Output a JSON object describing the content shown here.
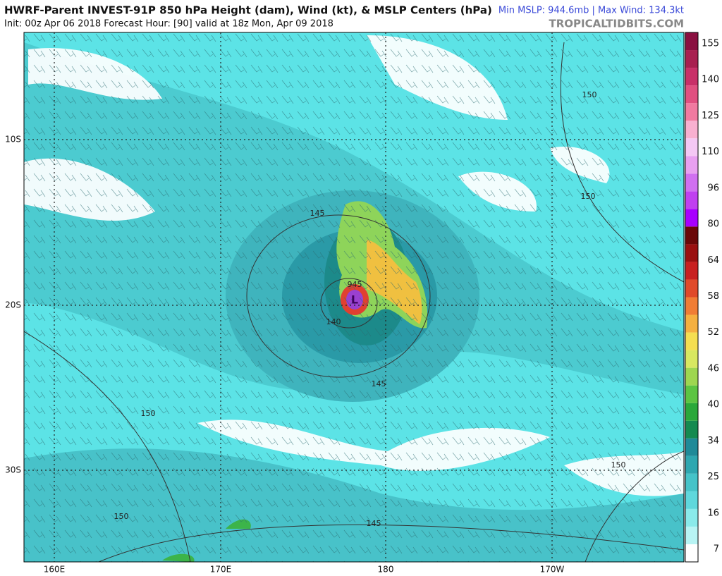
{
  "header": {
    "title": "HWRF-Parent INVEST-91P 850 hPa Height (dam), Wind (kt), & MSLP Centers (hPa)",
    "stats": "Min MSLP: 944.6mb | Max Wind: 134.3kt",
    "init": "Init: 00z Apr 06 2018   Forecast Hour: [90]   valid at 18z Mon, Apr 09 2018",
    "site": "TROPICALTIDBITS.COM"
  },
  "map": {
    "lon_labels": [
      "160E",
      "170E",
      "180",
      "170W"
    ],
    "lat_labels": [
      "10S",
      "20S",
      "30S"
    ],
    "contour_labels": [
      "150",
      "150",
      "145",
      "140",
      "145",
      "150",
      "150",
      "150",
      "145"
    ],
    "center_pressure": "945",
    "center_symbol": "L"
  },
  "colorbar": {
    "labels": [
      7,
      16,
      25,
      34,
      40,
      46,
      52,
      58,
      64,
      80,
      96,
      110,
      125,
      140,
      155
    ],
    "colors": [
      "#ffffff",
      "#b8f4f4",
      "#8aeaea",
      "#5fd8dc",
      "#45c3c8",
      "#2ea7b0",
      "#1f8a98",
      "#158a50",
      "#2aa83a",
      "#5cc442",
      "#9ed650",
      "#d8e860",
      "#f5de50",
      "#f5b040",
      "#f07d35",
      "#e04a2a",
      "#c82020",
      "#9a1010",
      "#6a0808",
      "#a800ff",
      "#c040f0",
      "#d070f0",
      "#e8a0f0",
      "#f4c8f4",
      "#f8b0d0",
      "#f07aa0",
      "#e05080",
      "#c83068",
      "#a82050",
      "#8a1040"
    ]
  }
}
